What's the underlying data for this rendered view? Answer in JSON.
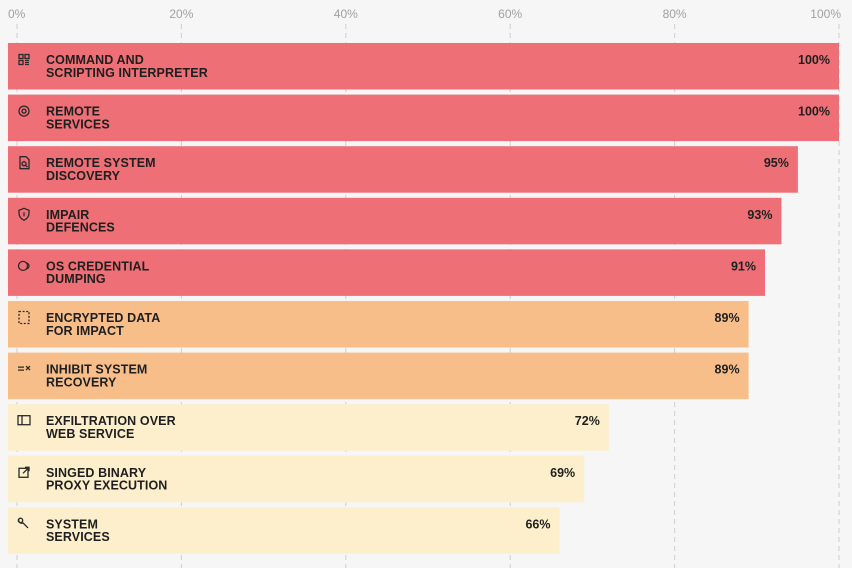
{
  "chart_data": {
    "type": "bar",
    "orientation": "horizontal",
    "x_ticks": [
      "0%",
      "20%",
      "40%",
      "60%",
      "80%",
      "100%"
    ],
    "xlim": [
      0,
      100
    ],
    "grid": true,
    "categories": [
      [
        "COMMAND AND",
        "SCRIPTING INTERPRETER"
      ],
      [
        "REMOTE",
        "SERVICES"
      ],
      [
        "REMOTE SYSTEM",
        "DISCOVERY"
      ],
      [
        "IMPAIR",
        "DEFENCES"
      ],
      [
        "OS CREDENTIAL",
        "DUMPING"
      ],
      [
        "ENCRYPTED DATA",
        "FOR IMPACT"
      ],
      [
        "INHIBIT SYSTEM",
        "RECOVERY"
      ],
      [
        "EXFILTRATION OVER",
        "WEB SERVICE"
      ],
      [
        "SINGED BINARY",
        "PROXY EXECUTION"
      ],
      [
        "SYSTEM",
        "SERVICES"
      ]
    ],
    "values": [
      100,
      100,
      95,
      93,
      91,
      89,
      89,
      72,
      69,
      66
    ],
    "value_labels": [
      "100%",
      "100%",
      "95%",
      "93%",
      "91%",
      "89%",
      "89%",
      "72%",
      "69%",
      "66%"
    ],
    "icons": [
      "terminal-icon",
      "remote-icon",
      "search-file-icon",
      "shield-icon",
      "key-icon",
      "encrypted-file-icon",
      "recovery-icon",
      "web-window-icon",
      "proxy-icon",
      "wrench-icon"
    ],
    "bar_colors": [
      "#ee7076",
      "#ee7076",
      "#ee7076",
      "#ee7076",
      "#ee7076",
      "#f7be8a",
      "#f7be8a",
      "#fdefcb",
      "#fdefcb",
      "#fdefcb"
    ]
  }
}
